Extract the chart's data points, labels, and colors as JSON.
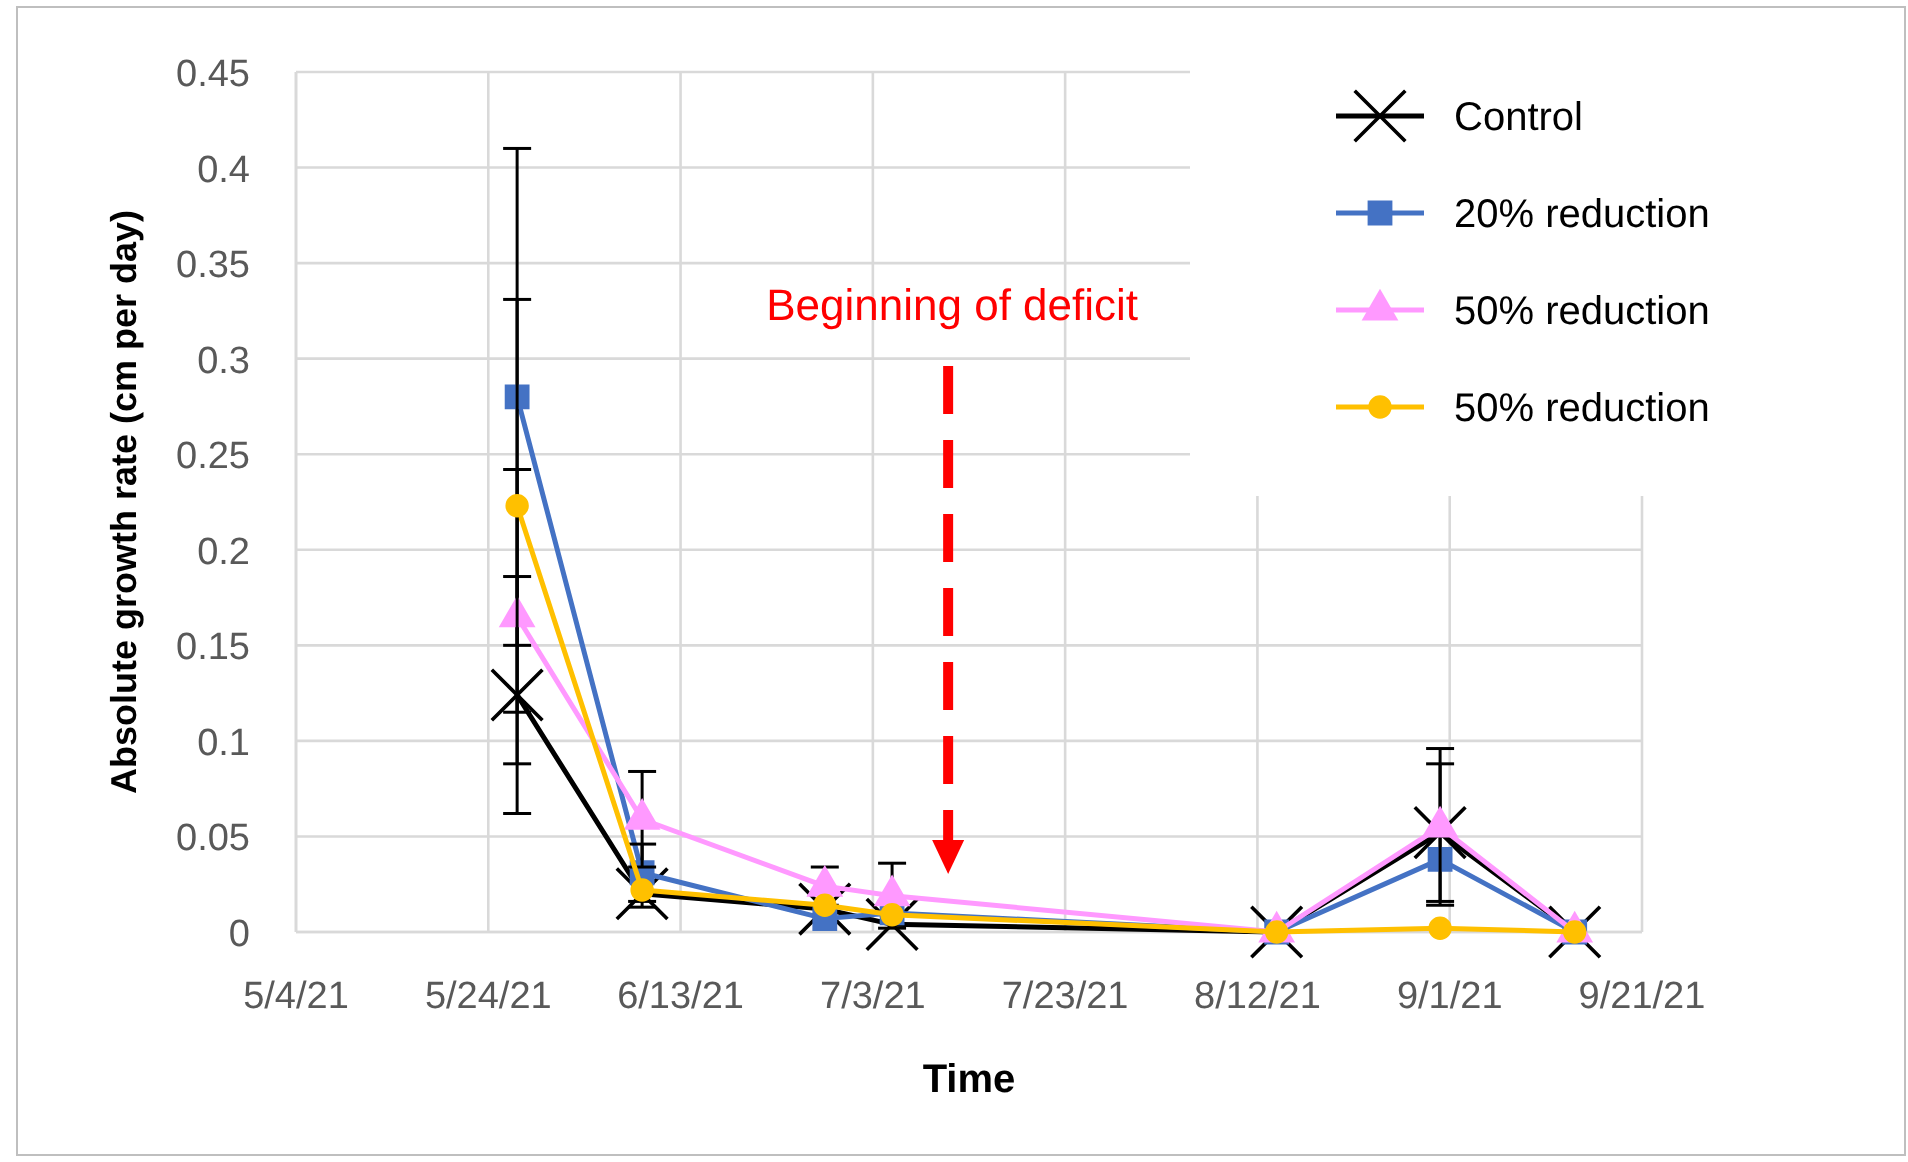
{
  "chart_data": {
    "type": "line",
    "xlabel": "Time",
    "ylabel": "Absolute growth rate (cm per day)",
    "x": [
      "2021-05-27",
      "2021-06-09",
      "2021-06-28",
      "2021-07-05",
      "2021-08-14",
      "2021-08-31",
      "2021-09-14"
    ],
    "series": [
      {
        "name": "Control",
        "color": "#000000",
        "marker": "cross",
        "values": [
          0.124,
          0.02,
          0.012,
          0.004,
          0,
          0.052,
          0
        ],
        "errors": [
          0.062,
          0.007,
          null,
          null,
          null,
          0.036,
          null
        ]
      },
      {
        "name": "20% reduction",
        "color": "#4472c4",
        "marker": "square",
        "values": [
          0.28,
          0.031,
          0.007,
          0.01,
          0,
          0.038,
          0
        ],
        "errors": [
          0.13,
          0.015,
          null,
          null,
          null,
          null,
          null
        ]
      },
      {
        "name": "50% reduction",
        "color": "#ff99ff",
        "marker": "triangle",
        "values": [
          0.165,
          0.059,
          0.024,
          0.019,
          0,
          0.055,
          0
        ],
        "errors": [
          0.077,
          0.025,
          0.01,
          0.017,
          null,
          0.041,
          null
        ]
      },
      {
        "name": "50% reduction",
        "color": "#ffc000",
        "marker": "circle",
        "values": [
          0.223,
          0.022,
          0.014,
          0.009,
          0,
          0.002,
          0
        ],
        "errors": [
          0.108,
          null,
          null,
          null,
          null,
          null,
          null
        ]
      }
    ],
    "xlim": [
      "2021-05-04",
      "2021-09-21"
    ],
    "xticks": [
      {
        "value": "2021-05-04",
        "label": "5/4/21"
      },
      {
        "value": "2021-05-24",
        "label": "5/24/21"
      },
      {
        "value": "2021-06-13",
        "label": "6/13/21"
      },
      {
        "value": "2021-07-03",
        "label": "7/3/21"
      },
      {
        "value": "2021-07-23",
        "label": "7/23/21"
      },
      {
        "value": "2021-08-12",
        "label": "8/12/21"
      },
      {
        "value": "2021-09-01",
        "label": "9/1/21"
      },
      {
        "value": "2021-09-21",
        "label": "9/21/21"
      }
    ],
    "ylim": [
      0,
      0.45
    ],
    "yticks": [
      0,
      0.05,
      0.1,
      0.15,
      0.2,
      0.25,
      0.3,
      0.35,
      0.4,
      0.45
    ],
    "annotations": [
      "Beginning of deficit"
    ],
    "grid": true,
    "legend": "top right"
  }
}
